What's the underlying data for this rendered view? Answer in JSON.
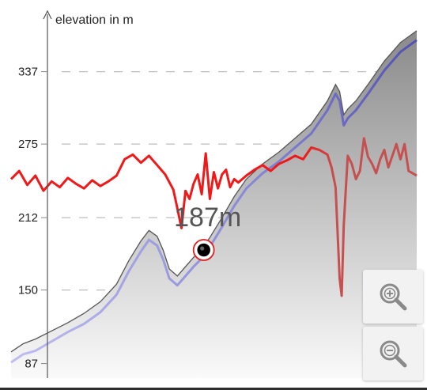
{
  "chart_data": {
    "type": "area",
    "ylabel": "elevation in m",
    "yticks": [
      87,
      150,
      212,
      275,
      337
    ],
    "ylim": [
      79,
      375
    ],
    "xlim": [
      0,
      100
    ],
    "grid": "horizontal-dashed",
    "cursor": {
      "x": 47.5,
      "y": 187,
      "label": "187m"
    },
    "series": [
      {
        "role": "elevation-profile",
        "color": "#777777",
        "x": [
          0,
          3,
          6,
          10,
          14,
          18,
          22,
          26,
          29,
          32,
          34,
          36,
          37.5,
          39,
          41,
          43,
          45,
          47,
          49,
          52,
          55,
          58,
          62,
          66,
          70,
          74,
          78,
          80,
          81,
          82,
          83,
          85,
          88,
          92,
          96,
          100
        ],
        "y": [
          97,
          104,
          108,
          115,
          122,
          130,
          140,
          155,
          175,
          192,
          201,
          196,
          184,
          168,
          162,
          170,
          178,
          185,
          195,
          212,
          230,
          245,
          258,
          268,
          280,
          292,
          312,
          326,
          320,
          300,
          305,
          312,
          326,
          346,
          362,
          372
        ]
      },
      {
        "role": "gps-elevation",
        "color": "#6b6bd0",
        "x": [
          0,
          3,
          6,
          10,
          14,
          18,
          22,
          26,
          29,
          32,
          34,
          36,
          37.5,
          39,
          41,
          43,
          45,
          47,
          49,
          52,
          55,
          58,
          62,
          66,
          70,
          74,
          78,
          80,
          81,
          82,
          83,
          85,
          88,
          92,
          96,
          100
        ],
        "y": [
          88,
          95,
          98,
          106,
          114,
          121,
          131,
          146,
          166,
          183,
          193,
          188,
          176,
          160,
          154,
          162,
          170,
          177,
          187,
          204,
          222,
          237,
          250,
          260,
          272,
          284,
          304,
          318,
          312,
          291,
          297,
          304,
          318,
          338,
          354,
          364
        ]
      },
      {
        "role": "slope",
        "color": "#e82020",
        "x": [
          0,
          2,
          4,
          6,
          8,
          10,
          12,
          14,
          16,
          18,
          20,
          22,
          24,
          26,
          28,
          30,
          32,
          34,
          36,
          38,
          40,
          41,
          42,
          43,
          44,
          45,
          46,
          47,
          48,
          49,
          50,
          51,
          52,
          53,
          54,
          55,
          56,
          58,
          60,
          62,
          64,
          66,
          68,
          70,
          72,
          74,
          76,
          78,
          79,
          80,
          81,
          81.5,
          82,
          82.5,
          83,
          84,
          85,
          86,
          87,
          88,
          89,
          90,
          91,
          92,
          93,
          94,
          95,
          96,
          97,
          98,
          100
        ],
        "y": [
          245,
          252,
          240,
          248,
          235,
          243,
          238,
          246,
          241,
          237,
          244,
          239,
          243,
          248,
          262,
          266,
          259,
          265,
          257,
          249,
          236,
          220,
          203,
          235,
          228,
          241,
          249,
          232,
          267,
          228,
          251,
          237,
          249,
          253,
          238,
          245,
          242,
          248,
          253,
          257,
          252,
          258,
          261,
          265,
          262,
          272,
          270,
          266,
          255,
          238,
          160,
          145,
          205,
          235,
          265,
          258,
          245,
          252,
          280,
          264,
          258,
          250,
          262,
          270,
          255,
          265,
          275,
          262,
          275,
          252,
          248
        ]
      }
    ]
  },
  "zoom": {
    "in_icon": "zoom-in-icon",
    "out_icon": "zoom-out-icon"
  }
}
